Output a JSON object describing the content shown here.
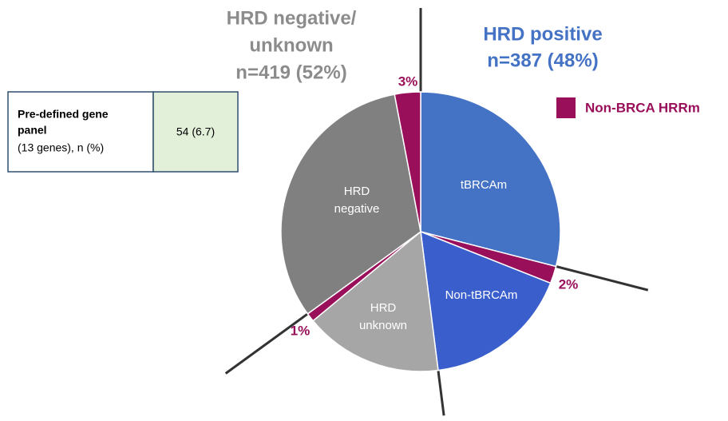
{
  "chart_data": {
    "type": "pie",
    "annotations": {
      "negative_header": [
        "HRD negative/",
        "unknown",
        "n=419 (52%)"
      ],
      "positive_header": [
        "HRD positive",
        "n=387 (48%)"
      ]
    },
    "legend": {
      "name": "Non-BRCA HRRm",
      "color": "#990f5a"
    },
    "categories": [
      [
        "tBRCAm"
      ],
      null,
      [
        "Non-tBRCAm"
      ],
      [
        "HRD",
        "unknown"
      ],
      null,
      [
        "HRD",
        "negative"
      ],
      null
    ],
    "values": [
      29,
      2,
      17,
      16,
      1,
      32,
      3
    ],
    "value_labels": [
      null,
      "2%",
      null,
      null,
      "1%",
      null,
      "3%"
    ],
    "colors": [
      "#4472c4",
      "#990f5a",
      "#3a5fcd",
      "#a6a6a6",
      "#990f5a",
      "#808080",
      "#990f5a"
    ],
    "table": {
      "label": [
        "Pre-defined gene",
        "panel",
        "(13 genes), n (%)"
      ],
      "value": "54 (6.7)"
    }
  }
}
